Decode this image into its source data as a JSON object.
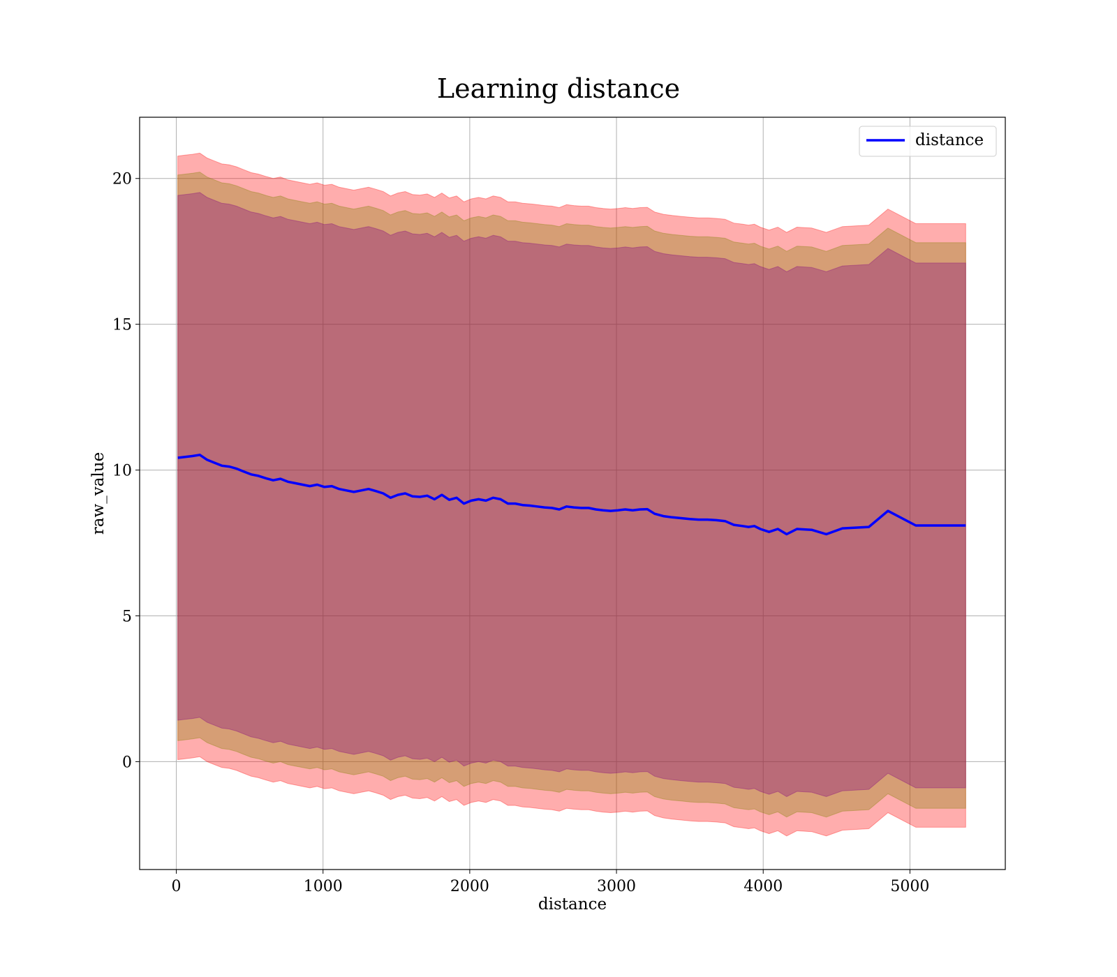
{
  "chart_data": {
    "type": "line",
    "title": "Learning distance",
    "xlabel": "distance",
    "ylabel": "raw_value",
    "xlim": [
      -250,
      5650
    ],
    "ylim": [
      -3.7,
      22.1
    ],
    "xticks": [
      0,
      1000,
      2000,
      3000,
      4000,
      5000
    ],
    "yticks": [
      0,
      5,
      10,
      15,
      20
    ],
    "grid": true,
    "legend_position": "top-right",
    "series": [
      {
        "name": "distance",
        "color": "#0000ff",
        "x": [
          10,
          60,
          110,
          160,
          210,
          260,
          310,
          360,
          410,
          460,
          510,
          560,
          610,
          660,
          710,
          760,
          810,
          860,
          910,
          960,
          1010,
          1060,
          1110,
          1160,
          1210,
          1260,
          1310,
          1360,
          1410,
          1460,
          1510,
          1560,
          1610,
          1660,
          1710,
          1760,
          1810,
          1860,
          1910,
          1960,
          2010,
          2060,
          2110,
          2160,
          2210,
          2260,
          2310,
          2360,
          2410,
          2460,
          2510,
          2560,
          2610,
          2660,
          2710,
          2760,
          2810,
          2860,
          2910,
          2960,
          3010,
          3060,
          3110,
          3160,
          3210,
          3260,
          3320,
          3380,
          3440,
          3500,
          3560,
          3620,
          3680,
          3740,
          3800,
          3860,
          3900,
          3940,
          3980,
          4040,
          4100,
          4160,
          4230,
          4330,
          4430,
          4540,
          4720,
          4850,
          5040,
          5380
        ],
        "y": [
          10.42,
          10.45,
          10.48,
          10.52,
          10.35,
          10.25,
          10.15,
          10.12,
          10.05,
          9.95,
          9.85,
          9.8,
          9.72,
          9.65,
          9.7,
          9.6,
          9.55,
          9.5,
          9.45,
          9.5,
          9.42,
          9.45,
          9.35,
          9.3,
          9.25,
          9.3,
          9.35,
          9.28,
          9.2,
          9.05,
          9.15,
          9.2,
          9.1,
          9.08,
          9.12,
          9.0,
          9.15,
          8.98,
          9.05,
          8.85,
          8.95,
          9.0,
          8.95,
          9.05,
          9.0,
          8.85,
          8.85,
          8.8,
          8.78,
          8.75,
          8.72,
          8.7,
          8.65,
          8.75,
          8.72,
          8.7,
          8.7,
          8.65,
          8.62,
          8.6,
          8.62,
          8.65,
          8.62,
          8.65,
          8.66,
          8.5,
          8.42,
          8.38,
          8.35,
          8.32,
          8.3,
          8.3,
          8.28,
          8.25,
          8.12,
          8.08,
          8.05,
          8.08,
          7.98,
          7.88,
          7.98,
          7.8,
          7.98,
          7.95,
          7.8,
          8.0,
          8.05,
          8.6,
          8.1,
          8.1
        ]
      }
    ],
    "bands": [
      {
        "color": "#ff0000",
        "opacity": 0.32,
        "half_width": 10.35
      },
      {
        "color": "#808000",
        "opacity": 0.32,
        "half_width": 9.7
      },
      {
        "color": "#800080",
        "opacity": 0.32,
        "half_width": 9.0
      }
    ]
  }
}
